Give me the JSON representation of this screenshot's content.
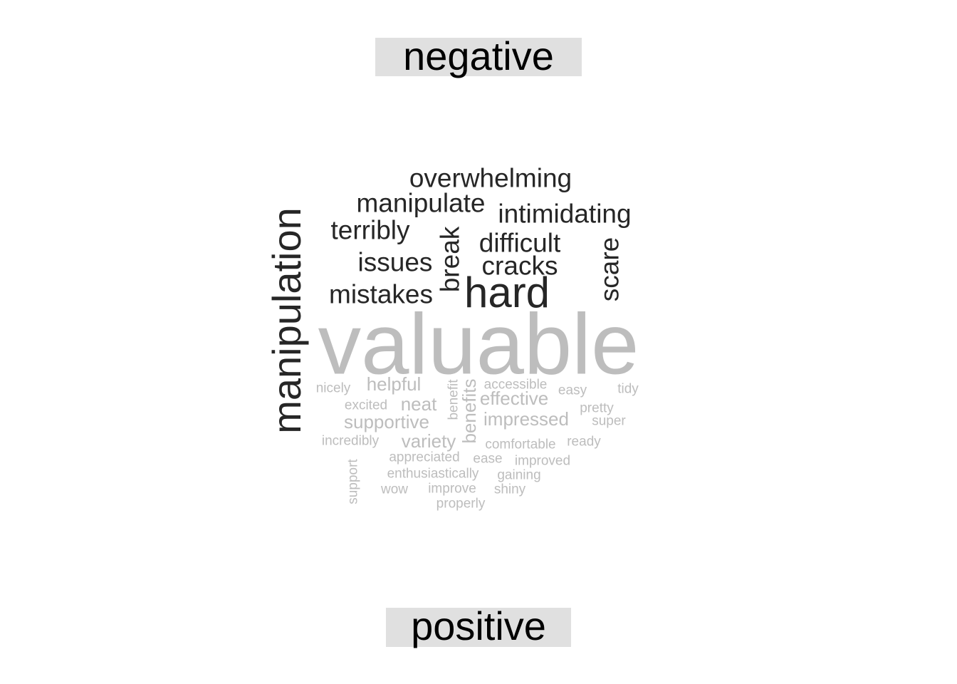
{
  "labels": {
    "negative": "negative",
    "positive": "positive"
  },
  "colors": {
    "negative": "#262626",
    "positive": "#bdbdbd",
    "label_bg": "#e0e0e0"
  },
  "negative_words": [
    {
      "text": "manipulation",
      "size": 56,
      "vertical": true
    },
    {
      "text": "overwhelming",
      "size": 37
    },
    {
      "text": "manipulate",
      "size": 37
    },
    {
      "text": "intimidating",
      "size": 37
    },
    {
      "text": "terribly",
      "size": 37
    },
    {
      "text": "break",
      "size": 37,
      "vertical": true
    },
    {
      "text": "difficult",
      "size": 37
    },
    {
      "text": "scare",
      "size": 37,
      "vertical": true
    },
    {
      "text": "issues",
      "size": 37
    },
    {
      "text": "cracks",
      "size": 37
    },
    {
      "text": "mistakes",
      "size": 37
    },
    {
      "text": "hard",
      "size": 60
    }
  ],
  "positive_words": [
    {
      "text": "valuable",
      "size": 121
    },
    {
      "text": "nicely",
      "size": 19
    },
    {
      "text": "helpful",
      "size": 26
    },
    {
      "text": "benefit",
      "size": 19,
      "vertical": true
    },
    {
      "text": "accessible",
      "size": 19
    },
    {
      "text": "easy",
      "size": 19
    },
    {
      "text": "tidy",
      "size": 19
    },
    {
      "text": "benefits",
      "size": 26,
      "vertical": true
    },
    {
      "text": "effective",
      "size": 26
    },
    {
      "text": "excited",
      "size": 19
    },
    {
      "text": "neat",
      "size": 26
    },
    {
      "text": "pretty",
      "size": 19
    },
    {
      "text": "supportive",
      "size": 26
    },
    {
      "text": "impressed",
      "size": 26
    },
    {
      "text": "super",
      "size": 19
    },
    {
      "text": "incredibly",
      "size": 19
    },
    {
      "text": "variety",
      "size": 26
    },
    {
      "text": "comfortable",
      "size": 19
    },
    {
      "text": "ready",
      "size": 19
    },
    {
      "text": "appreciated",
      "size": 19
    },
    {
      "text": "ease",
      "size": 19
    },
    {
      "text": "improved",
      "size": 19
    },
    {
      "text": "support",
      "size": 19,
      "vertical": true
    },
    {
      "text": "enthusiastically",
      "size": 19
    },
    {
      "text": "gaining",
      "size": 19
    },
    {
      "text": "wow",
      "size": 19
    },
    {
      "text": "improve",
      "size": 19
    },
    {
      "text": "shiny",
      "size": 19
    },
    {
      "text": "properly",
      "size": 19
    }
  ]
}
